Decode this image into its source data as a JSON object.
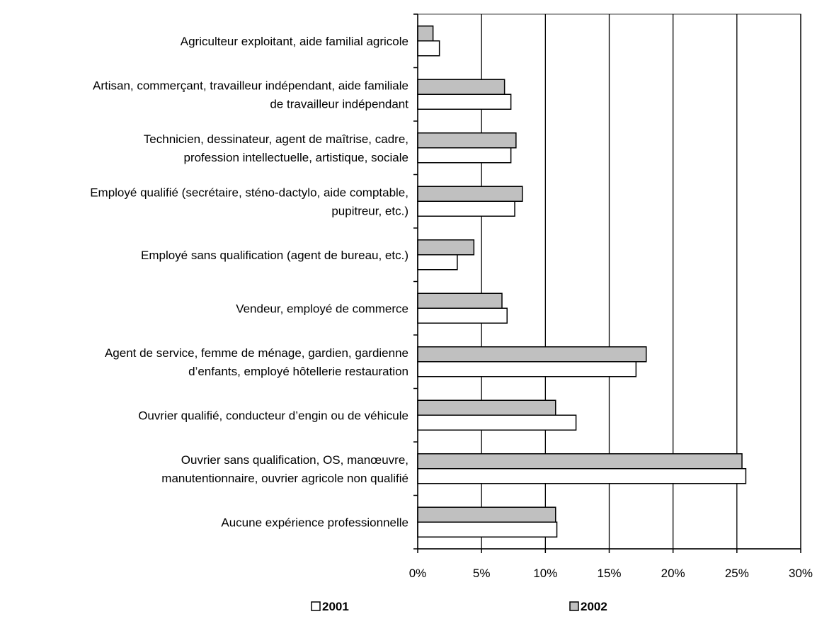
{
  "chart_data": {
    "type": "bar",
    "orientation": "horizontal",
    "categories": [
      [
        "Agriculteur exploitant, aide familial agricole"
      ],
      [
        "Artisan, commerçant, travailleur indépendant, aide familiale",
        "de travailleur indépendant"
      ],
      [
        "Technicien, dessinateur, agent de maîtrise, cadre,",
        "profession intellectuelle, artistique, sociale"
      ],
      [
        "Employé qualifié (secrétaire, sténo-dactylo, aide comptable,",
        "pupitreur, etc.)"
      ],
      [
        "Employé sans qualification (agent de bureau, etc.)"
      ],
      [
        "Vendeur, employé de commerce"
      ],
      [
        "Agent de service, femme de ménage, gardien, gardienne",
        "d’enfants, employé hôtellerie restauration"
      ],
      [
        "Ouvrier qualifié, conducteur d’engin ou de véhicule"
      ],
      [
        "Ouvrier sans qualification, OS, manœuvre,",
        "manutentionnaire, ouvrier agricole non qualifié"
      ],
      [
        "Aucune expérience professionnelle"
      ]
    ],
    "series": [
      {
        "name": "2002",
        "color": "#c0c0c0",
        "values": [
          1.2,
          6.8,
          7.7,
          8.2,
          4.4,
          6.6,
          17.9,
          10.8,
          25.4,
          10.8
        ]
      },
      {
        "name": "2001",
        "color": "#ffffff",
        "values": [
          1.7,
          7.3,
          7.3,
          7.6,
          3.1,
          7.0,
          17.1,
          12.4,
          25.7,
          10.9
        ]
      }
    ],
    "xlim": [
      0,
      30
    ],
    "xticks": [
      0,
      5,
      10,
      15,
      20,
      25,
      30
    ],
    "tick_format": "{v}%",
    "grid": "vertical",
    "legend": {
      "placement": "bottom",
      "entries": [
        {
          "label": "2001",
          "color": "#ffffff"
        },
        {
          "label": "2002",
          "color": "#c0c0c0"
        }
      ]
    }
  }
}
